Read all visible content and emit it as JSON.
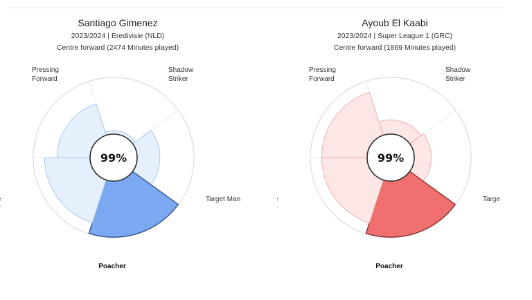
{
  "chart_data": [
    {
      "type": "pie",
      "variant": "polar-area",
      "player": "Santiago Gimenez",
      "season_line": "2023/2024 | Eredivisie (NLD)",
      "position_line": "Centre forward (2474 Minutes played)",
      "center_value": "99%",
      "rlim": [
        0,
        100
      ],
      "categories": [
        "Pressing Forward",
        "Shadow Striker",
        "Target Man",
        "Poacher",
        "Mobile Striker"
      ],
      "label_lines": [
        [
          "Pressing",
          "Forward"
        ],
        [
          "Shadow",
          "Striker"
        ],
        [
          "Target Man"
        ],
        [
          "Poacher"
        ],
        [
          "Mobile",
          "Striker"
        ]
      ],
      "values": [
        58,
        6,
        40,
        99,
        80
      ],
      "highlight": "Poacher",
      "colors": {
        "fill": "#e6f0fd",
        "stroke": "#a9c8ee",
        "highlight_fill": "#7aa9f2",
        "highlight_stroke": "#2d4f8a"
      }
    },
    {
      "type": "pie",
      "variant": "polar-area",
      "player": "Ayoub El Kaabi",
      "season_line": "2023/2024 | Super League 1 (GRC)",
      "position_line": "Centre forward (1869 Minutes played)",
      "center_value": "99%",
      "rlim": [
        0,
        100
      ],
      "categories": [
        "Pressing Forward",
        "Shadow Striker",
        "Target Man",
        "Poacher",
        "Mobile Striker"
      ],
      "label_lines": [
        [
          "Pressing",
          "Forward"
        ],
        [
          "Shadow",
          "Striker"
        ],
        [
          "Targe"
        ],
        [
          "Poacher"
        ],
        [
          "Mobile",
          "Striker"
        ]
      ],
      "values": [
        80,
        25,
        30,
        99,
        80
      ],
      "highlight": "Poacher",
      "colors": {
        "fill": "#fce6e6",
        "stroke": "#eeb0b0",
        "highlight_fill": "#f07070",
        "highlight_stroke": "#8a2a2a"
      }
    }
  ]
}
